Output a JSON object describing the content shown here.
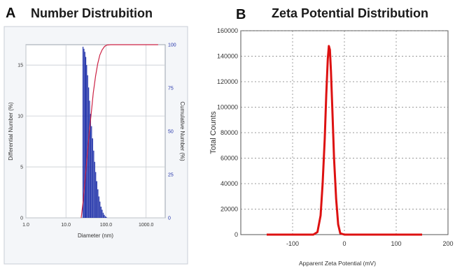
{
  "chart_data": [
    {
      "panel": "A",
      "type": "bar",
      "title": "Number Distrubition",
      "xlabel": "Diameter (nm)",
      "ylabel": "Differential Number (%)",
      "y2label": "Cumulative Number (%)",
      "x_scale": "log",
      "xlim": [
        1.0,
        3000.0
      ],
      "ylim": [
        0,
        17
      ],
      "y2lim": [
        0,
        100
      ],
      "grid": true,
      "x_tick_labels": [
        "1.0",
        "10.0",
        "100.0",
        "1000.0"
      ],
      "y_tick_labels": [
        "0",
        "5",
        "10",
        "15"
      ],
      "y2_tick_labels": [
        "0",
        "25",
        "50",
        "75",
        "100"
      ],
      "bar_color": "#2233aa",
      "cumulative_color": "#cc2244",
      "series": [
        {
          "kind": "bars",
          "x": [
            26,
            27.5,
            29,
            30.5,
            32,
            34,
            36,
            38,
            40,
            42.5,
            45,
            48,
            51,
            54,
            57,
            61,
            65,
            69,
            73,
            78,
            83,
            88,
            94,
            100
          ],
          "values": [
            16.8,
            16.6,
            16.3,
            15.8,
            15.0,
            14.0,
            12.8,
            11.5,
            10.2,
            9.0,
            7.8,
            6.6,
            5.5,
            4.5,
            3.6,
            2.8,
            2.1,
            1.6,
            1.1,
            0.8,
            0.5,
            0.3,
            0.15,
            0.08
          ]
        },
        {
          "kind": "cumulative",
          "x": [
            24,
            27,
            30,
            34,
            38,
            43,
            48,
            55,
            62,
            70,
            80,
            92,
            105,
            130,
            200,
            500,
            1000,
            2000
          ],
          "values": [
            0,
            10,
            22,
            36,
            49,
            61,
            72,
            82,
            89,
            94,
            97,
            99,
            99.8,
            100,
            100,
            100,
            100,
            100
          ]
        }
      ]
    },
    {
      "panel": "B",
      "type": "line",
      "title": "Zeta Potential Distribution",
      "xlabel": "Apparent Zeta Potential (mV)",
      "ylabel": "Total Counts",
      "xlim": [
        -200,
        200
      ],
      "ylim": [
        0,
        160000
      ],
      "grid": true,
      "x_tick_labels": [
        "-100",
        "0",
        "100",
        "200"
      ],
      "y_tick_labels": [
        "0",
        "20000",
        "40000",
        "60000",
        "80000",
        "100000",
        "120000",
        "140000",
        "160000"
      ],
      "line_color": "#dd1111",
      "series": [
        {
          "x": [
            -150,
            -100,
            -60,
            -52,
            -46,
            -42,
            -38,
            -35,
            -32,
            -30,
            -28,
            -26,
            -23,
            -20,
            -16,
            -12,
            -8,
            0,
            50,
            100,
            150
          ],
          "values": [
            0,
            0,
            0,
            2000,
            15000,
            40000,
            75000,
            110000,
            138000,
            148000,
            145000,
            128000,
            95000,
            60000,
            28000,
            8000,
            1000,
            0,
            0,
            0,
            0
          ]
        }
      ]
    }
  ]
}
